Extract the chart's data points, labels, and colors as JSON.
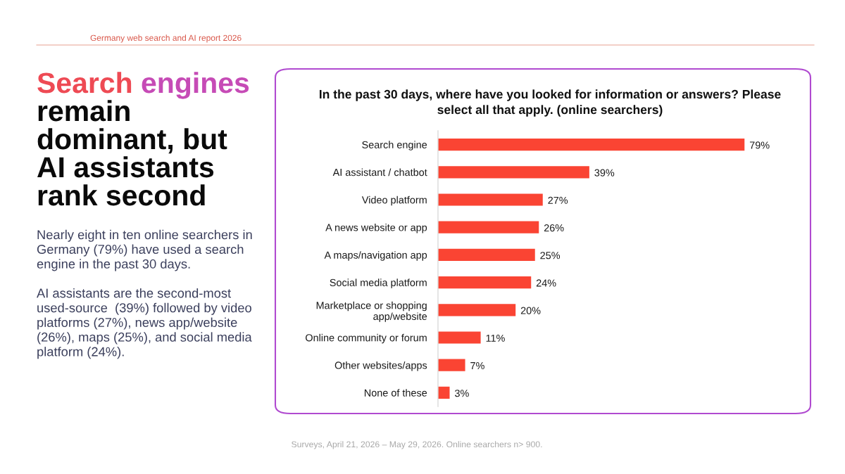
{
  "chart_data": {
    "type": "bar",
    "orientation": "horizontal",
    "title": "Search engines remain dominant, but AI assistants rank second",
    "subtitle": "In the past 30 days, where have you looked for information or answers? Please select all that apply. (online searchers)",
    "categories": [
      "Search engine",
      "AI assistant / chatbot",
      "Video platform",
      "A news website or app",
      "A maps/navigation app",
      "Social media platform",
      "Marketplace or shopping app/website",
      "Online community or forum",
      "Other websites/apps",
      "None of these"
    ],
    "values": [
      79,
      39,
      27,
      26,
      25,
      24,
      20,
      11,
      7,
      3
    ],
    "color": "#fa4433",
    "value_labels": [
      "79%",
      "39%",
      "27%",
      "26%",
      "25%",
      "24%",
      "20%",
      "11%",
      "7%",
      "3%"
    ],
    "tick_labels": "y",
    "annotations": [
      "Germany web search and AI report 2026",
      "Nearly eight in ten online searchers in Germany (79%) have used a search engine in the past 30 days.",
      "AI assistants are the second-most used-source  (39%) followed by video platforms (27%), news app/website (26%), maps (25%), and social media platform (24%).",
      "Surveys, April 21, 2026 – May 29, 2026. Online searchers n> 900."
    ]
  }
}
